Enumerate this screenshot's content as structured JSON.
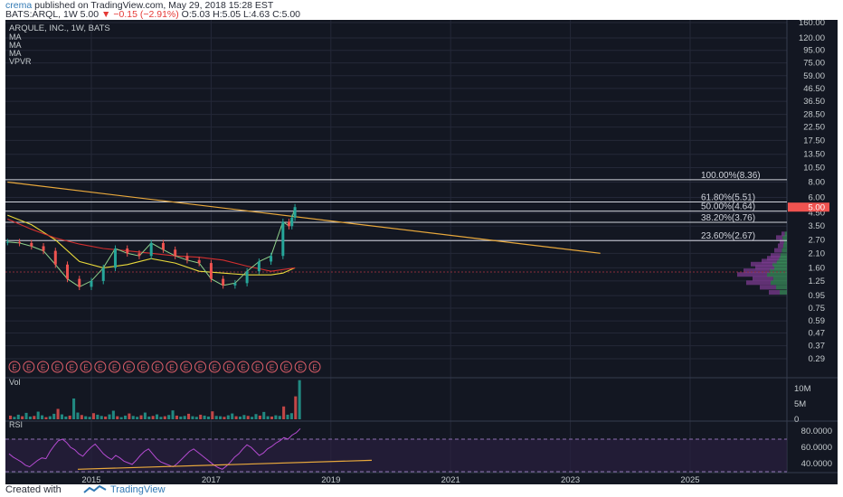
{
  "header": {
    "author": "crema",
    "published": "published on TradingView.com, May 29, 2018 15:28 EST",
    "symbol": "BATS:ARQL, 1W",
    "last_price": "5.00",
    "change": "−0.15 (−2.91%)",
    "ohlc": "O:5.03 H:5.05 L:4.63 C:5.00"
  },
  "legend": {
    "title": "ARQULE, INC., 1W, BATS",
    "items": [
      "MA",
      "MA",
      "MA",
      "VPVR"
    ]
  },
  "colors": {
    "background": "#131722",
    "grid": "#242838",
    "axis_text": "#c5cbce",
    "price_candles_up": "#26a69a",
    "price_candles_down": "#ef5350",
    "ma_yellow": "#e9d93b",
    "ma_red": "#d32f2f",
    "trendline": "#e8a83c",
    "rsi_line": "#b44bd1",
    "rsi_band": "#2a1f3f",
    "price_label": "#ef5350"
  },
  "chart_data": [
    {
      "type": "line",
      "title": "ARQULE, INC., 1W, BATS",
      "scale": "log",
      "y_ticks": [
        "160.00",
        "120.00",
        "95.00",
        "75.00",
        "59.00",
        "46.50",
        "36.50",
        "28.50",
        "22.50",
        "17.50",
        "13.50",
        "10.50",
        "8.00",
        "6.00",
        "4.50",
        "3.50",
        "2.70",
        "2.10",
        "1.60",
        "1.25",
        "0.95",
        "0.75",
        "0.59",
        "0.47",
        "0.37",
        "0.29"
      ],
      "y_tick_values": [
        160,
        120,
        95,
        75,
        59,
        46.5,
        36.5,
        28.5,
        22.5,
        17.5,
        13.5,
        10.5,
        8,
        6,
        4.5,
        3.5,
        2.7,
        2.1,
        1.6,
        1.25,
        0.95,
        0.75,
        0.59,
        0.47,
        0.37,
        0.29
      ],
      "x_ticks": [
        "2015",
        "2017",
        "2019",
        "2021",
        "2023",
        "2025"
      ],
      "x_tick_values": [
        2015.0,
        2017.0,
        2019.0,
        2021.0,
        2023.0,
        2025.0
      ],
      "last_price_label": "5.00",
      "series": [
        {
          "x": [
            2013.6,
            2013.8,
            2014.0,
            2014.2,
            2014.4,
            2014.6,
            2014.8,
            2015.0,
            2015.2,
            2015.4,
            2015.6,
            2015.8,
            2016.0,
            2016.2,
            2016.4,
            2016.6,
            2016.8,
            2017.0,
            2017.2,
            2017.4,
            2017.6,
            2017.8,
            2018.0,
            2018.2,
            2018.3,
            2018.35,
            2018.4
          ],
          "values": [
            2.6,
            2.55,
            2.4,
            2.2,
            1.7,
            1.3,
            1.12,
            1.25,
            1.6,
            2.3,
            2.1,
            2.0,
            2.55,
            2.25,
            2.0,
            1.85,
            1.75,
            1.3,
            1.15,
            1.2,
            1.5,
            1.8,
            2.0,
            3.8,
            3.5,
            4.1,
            5.0
          ]
        },
        {
          "x": [
            2013.6,
            2014.0,
            2014.4,
            2014.8,
            2015.2,
            2015.6,
            2016.0,
            2016.4,
            2016.8,
            2017.2,
            2017.6,
            2018.0,
            2018.2,
            2018.4
          ],
          "values": [
            4.3,
            3.6,
            2.7,
            1.8,
            1.6,
            1.7,
            1.9,
            1.75,
            1.5,
            1.45,
            1.4,
            1.4,
            1.45,
            1.6
          ]
        },
        {
          "x": [
            2013.6,
            2014.0,
            2014.4,
            2014.8,
            2015.2,
            2015.6,
            2016.0,
            2016.4,
            2016.8,
            2017.2,
            2017.6,
            2018.0,
            2018.4
          ],
          "values": [
            4.0,
            3.3,
            2.8,
            2.5,
            2.3,
            2.2,
            2.1,
            2.0,
            1.95,
            1.85,
            1.65,
            1.5,
            1.6
          ]
        }
      ],
      "fib_levels": [
        {
          "label": "100.00%(8.36)",
          "value": 8.36
        },
        {
          "label": "61.80%(5.51)",
          "value": 5.51
        },
        {
          "label": "50.00%(4.64)",
          "value": 4.64
        },
        {
          "label": "38.20%(3.76)",
          "value": 3.76
        },
        {
          "label": "23.60%(2.67)",
          "value": 2.67
        }
      ],
      "trendline": {
        "x": [
          2013.6,
          2023.5
        ],
        "values": [
          8.0,
          2.1
        ]
      },
      "earnings_markers": [
        "E",
        "E",
        "E",
        "E",
        "E",
        "E",
        "E",
        "E",
        "E",
        "E",
        "E",
        "E",
        "E",
        "E",
        "E",
        "E",
        "E",
        "E",
        "E",
        "E",
        "E",
        "E"
      ]
    },
    {
      "type": "bar",
      "title": "Vol",
      "y_ticks": [
        "10M",
        "5M",
        "0"
      ],
      "y_tick_values": [
        10,
        5,
        0
      ],
      "series": [
        {
          "name": "Vol",
          "values": [
            1.2,
            0.8,
            1.5,
            1.0,
            2.1,
            0.9,
            1.1,
            2.5,
            1.3,
            0.7,
            1.0,
            1.8,
            3.4,
            1.6,
            0.9,
            1.2,
            6.8,
            2.2,
            1.4,
            1.0,
            0.8,
            2.0,
            1.5,
            1.1,
            0.9,
            1.6,
            2.8,
            1.0,
            0.7,
            1.2,
            1.9,
            1.1,
            0.8,
            1.3,
            2.2,
            0.9,
            1.1,
            1.6,
            0.8,
            1.0,
            1.4,
            2.9,
            1.2,
            0.9,
            1.1,
            1.8,
            1.0,
            0.8,
            1.5,
            1.2,
            0.9,
            2.6,
            1.1,
            1.0,
            0.8,
            1.3,
            1.9,
            1.0,
            0.9,
            1.4,
            1.1,
            0.8,
            1.7,
            1.2,
            2.4,
            1.0,
            0.9,
            1.3,
            1.1,
            4.2,
            1.5,
            2.0,
            7.5,
            12.8
          ]
        }
      ]
    },
    {
      "type": "line",
      "title": "RSI",
      "y_ticks": [
        "80.0000",
        "60.0000",
        "40.0000"
      ],
      "y_tick_values": [
        80,
        60,
        40
      ],
      "series": [
        {
          "name": "RSI",
          "values": [
            52,
            48,
            45,
            42,
            38,
            36,
            40,
            44,
            47,
            46,
            55,
            62,
            68,
            70,
            66,
            60,
            57,
            52,
            49,
            55,
            60,
            64,
            58,
            52,
            48,
            45,
            50,
            47,
            43,
            41,
            39,
            44,
            50,
            55,
            58,
            52,
            46,
            42,
            40,
            38,
            36,
            40,
            45,
            50,
            55,
            58,
            54,
            50,
            46,
            42,
            38,
            35,
            33,
            37,
            42,
            48,
            52,
            58,
            63,
            60,
            55,
            50,
            53,
            58,
            61,
            65,
            68,
            72,
            70,
            75,
            78,
            83
          ]
        }
      ],
      "trendline": {
        "x": [
          0.0,
          1.0
        ],
        "values": [
          33,
          44
        ]
      }
    }
  ]
}
